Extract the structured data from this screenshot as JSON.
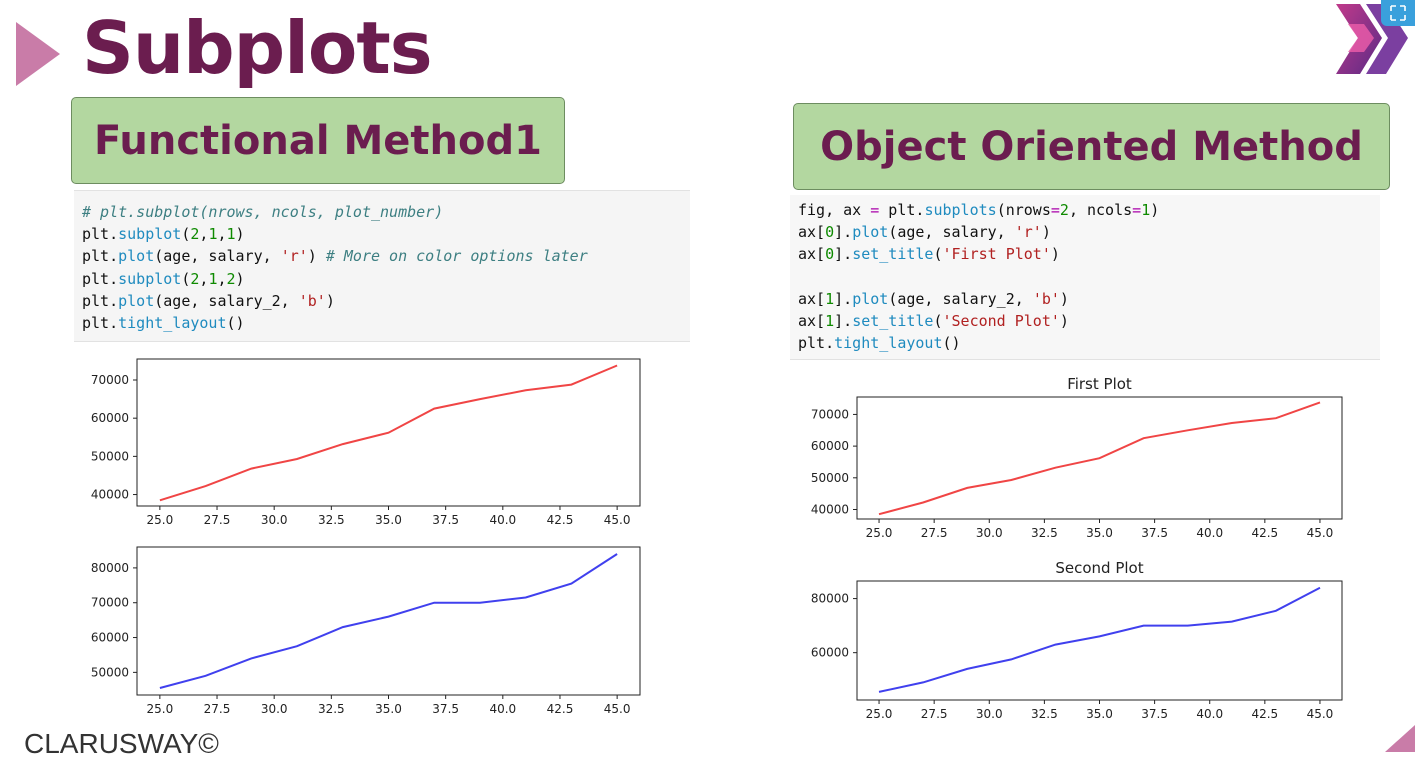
{
  "slide": {
    "title": "Subplots",
    "footer": "CLARUSWAY©",
    "colors": {
      "title": "#6b1d4f",
      "accent": "#c97ca8",
      "box": "#b3d7a0",
      "red_line": "#f04545",
      "blue_line": "#4040ee"
    },
    "icons": [
      "triangle-bullet-icon",
      "clarusway-chevron-logo-icon",
      "expand-icon",
      "corner-triangle-icon"
    ]
  },
  "left": {
    "heading": "Functional Method1",
    "code_lines": [
      "# plt.subplot(nrows, ncols, plot_number)",
      "plt.subplot(2,1,1)",
      "plt.plot(age, salary, 'r') # More on color options later",
      "plt.subplot(2,1,2)",
      "plt.plot(age, salary_2, 'b')",
      "plt.tight_layout()"
    ]
  },
  "right": {
    "heading": "Object Oriented Method",
    "code_lines": [
      "fig, ax = plt.subplots(nrows=2, ncols=1)",
      "ax[0].plot(age, salary, 'r')",
      "ax[0].set_title('First Plot')",
      "",
      "ax[1].plot(age, salary_2, 'b')",
      "ax[1].set_title('Second Plot')",
      "plt.tight_layout()"
    ]
  },
  "chart_data": [
    {
      "id": "left-top",
      "type": "line",
      "title": "",
      "x": [
        25,
        27,
        29,
        31,
        33,
        35,
        37,
        39,
        41,
        43,
        45
      ],
      "series": [
        {
          "color": "#f04545",
          "values": [
            38500,
            42200,
            46800,
            49300,
            53200,
            56200,
            62500,
            65000,
            67300,
            68800,
            73800
          ]
        }
      ],
      "xlim": [
        24.0,
        46.0
      ],
      "ylim": [
        37000,
        75500
      ],
      "xticks": [
        "25.0",
        "27.5",
        "30.0",
        "32.5",
        "35.0",
        "37.5",
        "40.0",
        "42.5",
        "45.0"
      ],
      "yticks": [
        "40000",
        "50000",
        "60000",
        "70000"
      ]
    },
    {
      "id": "left-bottom",
      "type": "line",
      "title": "",
      "x": [
        25,
        27,
        29,
        31,
        33,
        35,
        37,
        39,
        41,
        43,
        45
      ],
      "series": [
        {
          "color": "#4040ee",
          "values": [
            45500,
            49000,
            54000,
            57500,
            63000,
            66000,
            70000,
            70000,
            71500,
            75500,
            84000
          ]
        }
      ],
      "xlim": [
        24.0,
        46.0
      ],
      "ylim": [
        43500,
        86000
      ],
      "xticks": [
        "25.0",
        "27.5",
        "30.0",
        "32.5",
        "35.0",
        "37.5",
        "40.0",
        "42.5",
        "45.0"
      ],
      "yticks": [
        "50000",
        "60000",
        "70000",
        "80000"
      ]
    },
    {
      "id": "right-top",
      "type": "line",
      "title": "First Plot",
      "x": [
        25,
        27,
        29,
        31,
        33,
        35,
        37,
        39,
        41,
        43,
        45
      ],
      "series": [
        {
          "color": "#f04545",
          "values": [
            38500,
            42200,
            46800,
            49300,
            53200,
            56200,
            62500,
            65000,
            67300,
            68800,
            73800
          ]
        }
      ],
      "xlim": [
        24.0,
        46.0
      ],
      "ylim": [
        37000,
        75500
      ],
      "xticks": [
        "25.0",
        "27.5",
        "30.0",
        "32.5",
        "35.0",
        "37.5",
        "40.0",
        "42.5",
        "45.0"
      ],
      "yticks": [
        "40000",
        "50000",
        "60000",
        "70000"
      ]
    },
    {
      "id": "right-bottom",
      "type": "line",
      "title": "Second Plot",
      "x": [
        25,
        27,
        29,
        31,
        33,
        35,
        37,
        39,
        41,
        43,
        45
      ],
      "series": [
        {
          "color": "#4040ee",
          "values": [
            45500,
            49000,
            54000,
            57500,
            63000,
            66000,
            70000,
            70000,
            71500,
            75500,
            84000
          ]
        }
      ],
      "xlim": [
        24.0,
        46.0
      ],
      "ylim": [
        42500,
        86500
      ],
      "xticks": [
        "25.0",
        "27.5",
        "30.0",
        "32.5",
        "35.0",
        "37.5",
        "40.0",
        "42.5",
        "45.0"
      ],
      "yticks": [
        "60000",
        "80000"
      ]
    }
  ]
}
